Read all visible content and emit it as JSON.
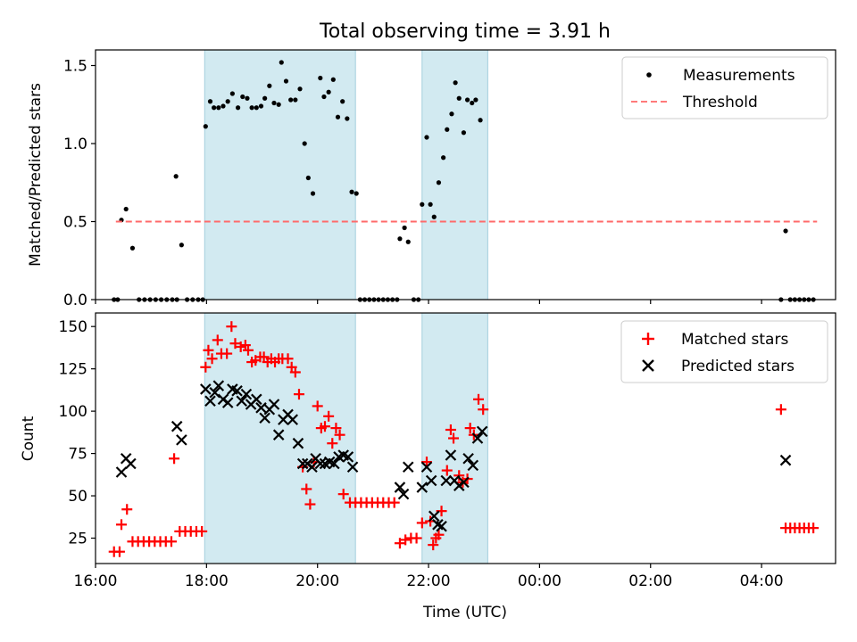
{
  "chart_data": [
    {
      "type": "scatter",
      "title": "Total observing time = 3.91 h",
      "xlabel": "",
      "ylabel": "Matched/Predicted stars",
      "xlim": [
        "16:00",
        "05:20"
      ],
      "ylim": [
        0,
        1.6
      ],
      "yticks": [
        "0.0",
        "0.5",
        "1.0",
        "1.5"
      ],
      "grid": false,
      "legend_position": "top-right",
      "shaded_intervals": [
        [
          "17:58",
          "20:41"
        ],
        [
          "21:53",
          "23:04"
        ]
      ],
      "series": [
        {
          "name": "Measurements",
          "marker": "dot",
          "color": "#000000",
          "points": [
            [
              "16:20",
              0
            ],
            [
              "16:24",
              0
            ],
            [
              "16:28",
              0.51
            ],
            [
              "16:33",
              0.58
            ],
            [
              "16:40",
              0.33
            ],
            [
              "16:47",
              0
            ],
            [
              "16:53",
              0
            ],
            [
              "16:59",
              0
            ],
            [
              "17:05",
              0
            ],
            [
              "17:11",
              0
            ],
            [
              "17:17",
              0
            ],
            [
              "17:23",
              0
            ],
            [
              "17:28",
              0
            ],
            [
              "17:27",
              0.79
            ],
            [
              "17:33",
              0.35
            ],
            [
              "17:39",
              0
            ],
            [
              "17:45",
              0
            ],
            [
              "17:51",
              0
            ],
            [
              "17:56",
              0
            ],
            [
              "17:59",
              1.11
            ],
            [
              "18:04",
              1.27
            ],
            [
              "18:08",
              1.23
            ],
            [
              "18:13",
              1.23
            ],
            [
              "18:18",
              1.24
            ],
            [
              "18:23",
              1.27
            ],
            [
              "18:28",
              1.32
            ],
            [
              "18:34",
              1.23
            ],
            [
              "18:39",
              1.3
            ],
            [
              "18:44",
              1.29
            ],
            [
              "18:49",
              1.23
            ],
            [
              "18:54",
              1.23
            ],
            [
              "18:59",
              1.24
            ],
            [
              "19:03",
              1.29
            ],
            [
              "19:08",
              1.37
            ],
            [
              "19:13",
              1.26
            ],
            [
              "19:18",
              1.25
            ],
            [
              "19:21",
              1.52
            ],
            [
              "19:26",
              1.4
            ],
            [
              "19:31",
              1.28
            ],
            [
              "19:36",
              1.28
            ],
            [
              "19:41",
              1.35
            ],
            [
              "19:46",
              1.0
            ],
            [
              "19:50",
              0.78
            ],
            [
              "19:55",
              0.68
            ],
            [
              "20:03",
              1.42
            ],
            [
              "20:07",
              1.3
            ],
            [
              "20:12",
              1.33
            ],
            [
              "20:17",
              1.41
            ],
            [
              "20:22",
              1.17
            ],
            [
              "20:27",
              1.27
            ],
            [
              "20:32",
              1.16
            ],
            [
              "20:37",
              0.69
            ],
            [
              "20:42",
              0.68
            ],
            [
              "20:46",
              0
            ],
            [
              "20:51",
              0
            ],
            [
              "20:56",
              0
            ],
            [
              "21:01",
              0
            ],
            [
              "21:06",
              0
            ],
            [
              "21:11",
              0
            ],
            [
              "21:16",
              0
            ],
            [
              "21:21",
              0
            ],
            [
              "21:26",
              0
            ],
            [
              "21:29",
              0.39
            ],
            [
              "21:34",
              0.46
            ],
            [
              "21:38",
              0.37
            ],
            [
              "21:44",
              0
            ],
            [
              "21:49",
              0
            ],
            [
              "21:53",
              0.61
            ],
            [
              "21:58",
              1.04
            ],
            [
              "22:02",
              0.61
            ],
            [
              "22:06",
              0.53
            ],
            [
              "22:11",
              0.75
            ],
            [
              "22:16",
              0.91
            ],
            [
              "22:20",
              1.09
            ],
            [
              "22:25",
              1.19
            ],
            [
              "22:29",
              1.39
            ],
            [
              "22:33",
              1.29
            ],
            [
              "22:38",
              1.07
            ],
            [
              "22:42",
              1.28
            ],
            [
              "22:47",
              1.26
            ],
            [
              "22:51",
              1.28
            ],
            [
              "22:56",
              1.15
            ],
            [
              "04:21",
              0
            ],
            [
              "04:26",
              0.44
            ],
            [
              "04:31",
              0
            ],
            [
              "04:36",
              0
            ],
            [
              "04:41",
              0
            ],
            [
              "04:46",
              0
            ],
            [
              "04:51",
              0
            ],
            [
              "04:56",
              0
            ]
          ]
        },
        {
          "name": "Threshold",
          "marker": "dashed-line",
          "color": "#ff6a6a",
          "points": [
            [
              "16:22",
              0.5
            ],
            [
              "05:00",
              0.5
            ]
          ]
        }
      ]
    },
    {
      "type": "scatter",
      "title": "",
      "xlabel": "Time (UTC)",
      "ylabel": "Count",
      "xlim": [
        "16:00",
        "05:20"
      ],
      "ylim": [
        10,
        158
      ],
      "yticks": [
        "25",
        "50",
        "75",
        "100",
        "125",
        "150"
      ],
      "xticks": [
        "16:00",
        "18:00",
        "20:00",
        "22:00",
        "00:00",
        "02:00",
        "04:00"
      ],
      "grid": false,
      "legend_position": "top-right",
      "shaded_intervals": [
        [
          "17:58",
          "20:41"
        ],
        [
          "21:53",
          "23:04"
        ]
      ],
      "series": [
        {
          "name": "Matched stars",
          "marker": "plus",
          "color": "#ff0000",
          "points": [
            [
              "16:20",
              17
            ],
            [
              "16:26",
              17
            ],
            [
              "16:28",
              33
            ],
            [
              "16:34",
              42
            ],
            [
              "16:40",
              23
            ],
            [
              "16:46",
              23
            ],
            [
              "16:52",
              23
            ],
            [
              "16:58",
              23
            ],
            [
              "17:04",
              23
            ],
            [
              "17:10",
              23
            ],
            [
              "17:16",
              23
            ],
            [
              "17:22",
              23
            ],
            [
              "17:25",
              72
            ],
            [
              "17:31",
              29
            ],
            [
              "17:37",
              29
            ],
            [
              "17:43",
              29
            ],
            [
              "17:49",
              29
            ],
            [
              "17:55",
              29
            ],
            [
              "17:59",
              126
            ],
            [
              "18:02",
              136
            ],
            [
              "18:06",
              131
            ],
            [
              "18:12",
              142
            ],
            [
              "18:16",
              134
            ],
            [
              "18:22",
              134
            ],
            [
              "18:27",
              150
            ],
            [
              "18:31",
              140
            ],
            [
              "18:37",
              138
            ],
            [
              "18:42",
              139
            ],
            [
              "18:45",
              136
            ],
            [
              "18:49",
              129
            ],
            [
              "18:53",
              130
            ],
            [
              "18:58",
              132
            ],
            [
              "19:02",
              132
            ],
            [
              "19:06",
              129
            ],
            [
              "19:10",
              131
            ],
            [
              "19:14",
              129
            ],
            [
              "19:18",
              131
            ],
            [
              "19:22",
              131
            ],
            [
              "19:28",
              131
            ],
            [
              "19:32",
              126
            ],
            [
              "19:36",
              123
            ],
            [
              "19:40",
              110
            ],
            [
              "19:44",
              67
            ],
            [
              "19:48",
              54
            ],
            [
              "19:52",
              45
            ],
            [
              "19:56",
              70
            ],
            [
              "20:00",
              103
            ],
            [
              "20:04",
              90
            ],
            [
              "20:08",
              91
            ],
            [
              "20:12",
              97
            ],
            [
              "20:16",
              81
            ],
            [
              "20:20",
              90
            ],
            [
              "20:24",
              86
            ],
            [
              "20:28",
              51
            ],
            [
              "20:35",
              46
            ],
            [
              "20:41",
              46
            ],
            [
              "20:47",
              46
            ],
            [
              "20:53",
              46
            ],
            [
              "20:59",
              46
            ],
            [
              "21:05",
              46
            ],
            [
              "21:11",
              46
            ],
            [
              "21:17",
              46
            ],
            [
              "21:23",
              46
            ],
            [
              "21:29",
              22
            ],
            [
              "21:35",
              24
            ],
            [
              "21:41",
              25
            ],
            [
              "21:47",
              25
            ],
            [
              "21:53",
              34
            ],
            [
              "21:58",
              70
            ],
            [
              "22:02",
              35
            ],
            [
              "22:05",
              21
            ],
            [
              "22:08",
              25
            ],
            [
              "22:11",
              27
            ],
            [
              "22:14",
              41
            ],
            [
              "22:20",
              65
            ],
            [
              "22:24",
              89
            ],
            [
              "22:27",
              84
            ],
            [
              "22:33",
              62
            ],
            [
              "22:37",
              58
            ],
            [
              "22:42",
              60
            ],
            [
              "22:45",
              90
            ],
            [
              "22:49",
              86
            ],
            [
              "22:54",
              107
            ],
            [
              "22:59",
              101
            ],
            [
              "04:21",
              101
            ],
            [
              "04:26",
              31
            ],
            [
              "04:31",
              31
            ],
            [
              "04:36",
              31
            ],
            [
              "04:41",
              31
            ],
            [
              "04:46",
              31
            ],
            [
              "04:51",
              31
            ],
            [
              "04:56",
              31
            ]
          ]
        },
        {
          "name": "Predicted stars",
          "marker": "x",
          "color": "#000000",
          "points": [
            [
              "16:28",
              64
            ],
            [
              "16:33",
              72
            ],
            [
              "16:38",
              69
            ],
            [
              "17:28",
              91
            ],
            [
              "17:33",
              83
            ],
            [
              "17:59",
              113
            ],
            [
              "18:04",
              106
            ],
            [
              "18:09",
              111
            ],
            [
              "18:13",
              115
            ],
            [
              "18:18",
              107
            ],
            [
              "18:23",
              105
            ],
            [
              "18:28",
              113
            ],
            [
              "18:33",
              112
            ],
            [
              "18:38",
              106
            ],
            [
              "18:43",
              110
            ],
            [
              "18:48",
              104
            ],
            [
              "18:54",
              107
            ],
            [
              "18:59",
              102
            ],
            [
              "19:03",
              96
            ],
            [
              "19:08",
              101
            ],
            [
              "19:13",
              104
            ],
            [
              "19:18",
              86
            ],
            [
              "19:23",
              95
            ],
            [
              "19:28",
              98
            ],
            [
              "19:33",
              95
            ],
            [
              "19:39",
              81
            ],
            [
              "19:44",
              69
            ],
            [
              "19:49",
              69
            ],
            [
              "19:54",
              67
            ],
            [
              "19:58",
              72
            ],
            [
              "20:03",
              69
            ],
            [
              "20:08",
              69
            ],
            [
              "20:13",
              70
            ],
            [
              "20:18",
              69
            ],
            [
              "20:23",
              73
            ],
            [
              "20:28",
              74
            ],
            [
              "20:33",
              73
            ],
            [
              "20:38",
              67
            ],
            [
              "21:29",
              55
            ],
            [
              "21:33",
              51
            ],
            [
              "21:38",
              67
            ],
            [
              "21:53",
              55
            ],
            [
              "21:58",
              67
            ],
            [
              "22:03",
              59
            ],
            [
              "22:06",
              38
            ],
            [
              "22:10",
              33
            ],
            [
              "22:14",
              32
            ],
            [
              "22:19",
              59
            ],
            [
              "22:24",
              74
            ],
            [
              "22:28",
              59
            ],
            [
              "22:33",
              56
            ],
            [
              "22:38",
              58
            ],
            [
              "22:43",
              72
            ],
            [
              "22:48",
              68
            ],
            [
              "22:53",
              84
            ],
            [
              "22:58",
              88
            ],
            [
              "04:26",
              71
            ]
          ]
        }
      ]
    }
  ]
}
